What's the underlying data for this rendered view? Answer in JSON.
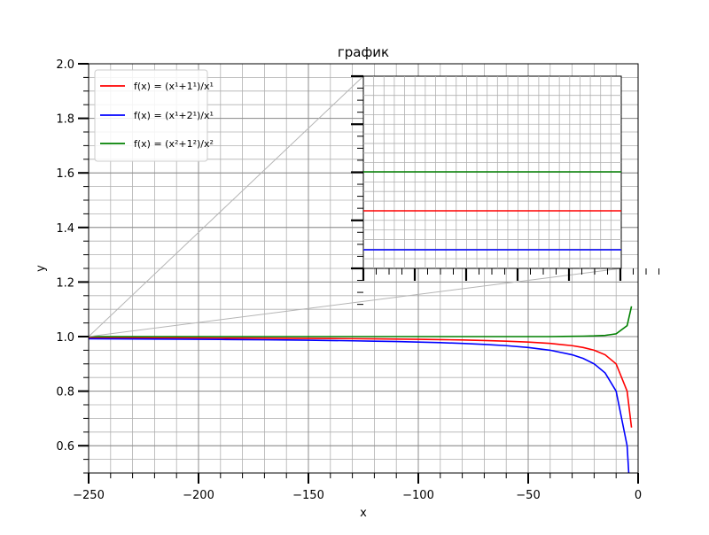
{
  "chart_data": {
    "type": "line",
    "title": "график",
    "xlabel": "x",
    "ylabel": "y",
    "xlim": [
      -250,
      0
    ],
    "ylim": [
      0.5,
      2.0
    ],
    "grid": true,
    "legend_position": "top-left",
    "x_ticks": [
      "−250",
      "−200",
      "−150",
      "−100",
      "−50",
      "0"
    ],
    "y_ticks": [
      "0.6",
      "0.8",
      "1.0",
      "1.2",
      "1.4",
      "1.6",
      "1.8",
      "2.0"
    ],
    "legend": [
      {
        "text": "f(x) = (x¹+1¹)/x¹",
        "color": "#ff0000"
      },
      {
        "text": "f(x) = (x¹+2¹)/x¹",
        "color": "#0000ff"
      },
      {
        "text": "f(x) = (x²+1²)/x²",
        "color": "#008000"
      }
    ],
    "x": [
      -250,
      -240,
      -230,
      -220,
      -210,
      -200,
      -190,
      -180,
      -170,
      -160,
      -150,
      -140,
      -130,
      -120,
      -110,
      -100,
      -90,
      -80,
      -70,
      -60,
      -50,
      -40,
      -30,
      -25,
      -20,
      -15,
      -10,
      -5,
      -3
    ],
    "series": [
      {
        "name": "f(x) = (x¹+1¹)/x¹",
        "color": "#ff0000",
        "values": [
          0.996,
          0.9958,
          0.9957,
          0.9955,
          0.9952,
          0.995,
          0.9947,
          0.9944,
          0.9941,
          0.9938,
          0.9933,
          0.9929,
          0.9923,
          0.9917,
          0.9909,
          0.99,
          0.9889,
          0.9875,
          0.9857,
          0.9833,
          0.98,
          0.975,
          0.9667,
          0.96,
          0.95,
          0.9333,
          0.9,
          0.8,
          0.6667
        ]
      },
      {
        "name": "f(x) = (x¹+2¹)/x¹",
        "color": "#0000ff",
        "values": [
          0.992,
          0.9917,
          0.9913,
          0.9909,
          0.9905,
          0.99,
          0.9895,
          0.9889,
          0.9882,
          0.9875,
          0.9867,
          0.9857,
          0.9846,
          0.9833,
          0.9818,
          0.98,
          0.9778,
          0.975,
          0.9714,
          0.9667,
          0.96,
          0.95,
          0.9333,
          0.92,
          0.9,
          0.8667,
          0.8,
          0.6,
          0.3333
        ]
      },
      {
        "name": "f(x) = (x²+1²)/x²",
        "color": "#008000",
        "values": [
          1.0,
          1.0,
          1.0,
          1.0,
          1.0,
          1.0,
          1.0,
          1.0,
          1.0,
          1.0,
          1.0,
          1.0,
          1.0,
          1.0,
          1.0,
          1.0,
          1.0,
          1.0,
          1.0,
          1.0,
          1.0,
          1.0,
          1.001,
          1.0016,
          1.0025,
          1.0044,
          1.01,
          1.04,
          1.1111
        ]
      }
    ]
  }
}
